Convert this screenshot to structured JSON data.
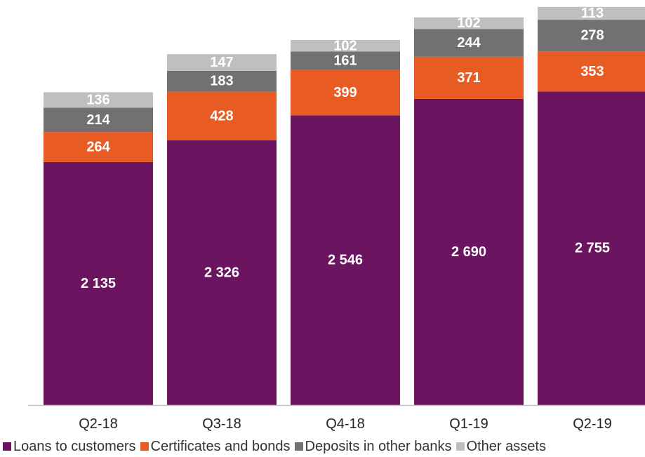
{
  "chart_data": {
    "type": "bar",
    "stacked": true,
    "categories": [
      "Q2-18",
      "Q3-18",
      "Q4-18",
      "Q1-19",
      "Q2-19"
    ],
    "series": [
      {
        "name": "Loans to customers",
        "values": [
          2135,
          2326,
          2546,
          2690,
          2755
        ],
        "labels": [
          "2 135",
          "2 326",
          "2 546",
          "2 690",
          "2 755"
        ],
        "color": "#6b1560"
      },
      {
        "name": "Certificates and bonds",
        "values": [
          264,
          428,
          399,
          371,
          353
        ],
        "labels": [
          "264",
          "428",
          "399",
          "371",
          "353"
        ],
        "color": "#e85c24"
      },
      {
        "name": "Deposits in other banks",
        "values": [
          214,
          183,
          161,
          244,
          278
        ],
        "labels": [
          "214",
          "183",
          "161",
          "244",
          "278"
        ],
        "color": "#727070"
      },
      {
        "name": "Other assets",
        "values": [
          136,
          147,
          102,
          102,
          113
        ],
        "labels": [
          "136",
          "147",
          "102",
          "102",
          "113"
        ],
        "color": "#bfbfbf"
      }
    ],
    "title": "",
    "xlabel": "",
    "ylabel": "",
    "ylim": [
      0,
      3500
    ],
    "grid": false,
    "legend_position": "bottom"
  }
}
